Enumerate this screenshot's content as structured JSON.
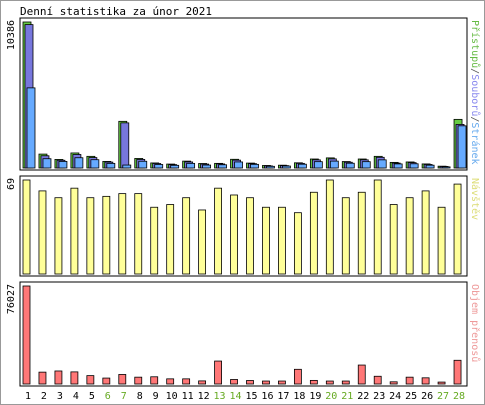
{
  "chart_data": {
    "type": "bar",
    "title": "Denní statistika za únor 2021",
    "categories": [
      "1",
      "2",
      "3",
      "4",
      "5",
      "6",
      "7",
      "8",
      "9",
      "10",
      "11",
      "12",
      "13",
      "14",
      "15",
      "16",
      "17",
      "18",
      "19",
      "20",
      "21",
      "22",
      "23",
      "24",
      "25",
      "26",
      "27",
      "28"
    ],
    "weekend_days": [
      "6",
      "7",
      "13",
      "14",
      "20",
      "21",
      "27",
      "28"
    ],
    "panels": [
      {
        "name": "hits",
        "max_label": "10386",
        "ylim": [
          0,
          10386
        ],
        "legend": [
          {
            "text": "Přístupů",
            "color": "#66bb44"
          },
          {
            "text": "/",
            "color": "#555555"
          },
          {
            "text": "Souborů",
            "color": "#8888ee"
          },
          {
            "text": "/",
            "color": "#555555"
          },
          {
            "text": "Stránek",
            "color": "#66aaee"
          }
        ],
        "series": [
          {
            "name": "Přístupů",
            "color": "#66cc44",
            "values": [
              10386,
              990,
              610,
              1070,
              830,
              470,
              3320,
              680,
              360,
              280,
              490,
              320,
              330,
              620,
              350,
              180,
              200,
              370,
              640,
              720,
              460,
              640,
              830,
              400,
              430,
              290,
              130,
              3460
            ]
          },
          {
            "name": "Souborů",
            "color": "#7777dd",
            "values": [
              10200,
              870,
              550,
              960,
              740,
              420,
              3210,
              610,
              320,
              240,
              430,
              280,
              290,
              560,
              310,
              150,
              170,
              330,
              580,
              650,
              410,
              580,
              760,
              350,
              380,
              250,
              110,
              3100
            ]
          },
          {
            "name": "Stránek",
            "color": "#66aaff",
            "values": [
              5700,
              660,
              470,
              730,
              590,
              330,
              210,
              480,
              250,
              190,
              330,
              210,
              230,
              430,
              260,
              120,
              140,
              270,
              450,
              490,
              340,
              450,
              580,
              290,
              300,
              200,
              80,
              3000
            ]
          }
        ]
      },
      {
        "name": "visits",
        "max_label": "69",
        "ylim": [
          0,
          69
        ],
        "legend": [
          {
            "text": "Návštěv",
            "color": "#dddd77"
          }
        ],
        "series": [
          {
            "name": "Návštěv",
            "color": "#ffff99",
            "values": [
              69,
              61,
              56,
              63,
              56,
              57,
              59,
              59,
              49,
              51,
              56,
              47,
              63,
              58,
              56,
              49,
              49,
              45,
              60,
              69,
              56,
              60,
              69,
              51,
              56,
              61,
              49,
              66
            ]
          }
        ]
      },
      {
        "name": "kbytes",
        "max_label": "76027",
        "ylim": [
          0,
          76027
        ],
        "legend": [
          {
            "text": "Objem přenosů",
            "color": "#ee9999"
          }
        ],
        "series": [
          {
            "name": "Objem přenosů",
            "color": "#ff7777",
            "values": [
              76027,
              9200,
              10100,
              9400,
              6500,
              4600,
              7400,
              5300,
              5600,
              4000,
              4000,
              2400,
              17800,
              3500,
              2700,
              2300,
              2300,
              11400,
              2800,
              2300,
              2300,
              14700,
              6000,
              1700,
              5300,
              4800,
              1500,
              18400
            ]
          }
        ]
      }
    ]
  }
}
